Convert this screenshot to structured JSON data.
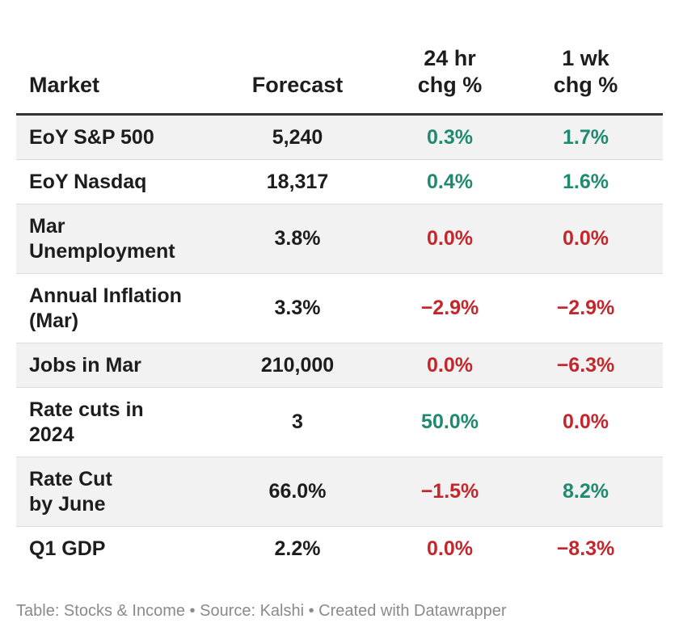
{
  "chart_data": {
    "type": "table",
    "columns": [
      "Market",
      "Forecast",
      "24 hr chg %",
      "1 wk chg %"
    ],
    "header_lines": {
      "market": "Market",
      "forecast": "Forecast",
      "chg24_line1": "24 hr",
      "chg24_line2": "chg %",
      "chg1wk_line1": "1 wk",
      "chg1wk_line2": "chg %"
    },
    "rows": [
      {
        "market_lines": [
          "EoY S&P 500"
        ],
        "forecast": "5,240",
        "chg24": "0.3%",
        "chg1wk": "1.7%"
      },
      {
        "market_lines": [
          "EoY Nasdaq"
        ],
        "forecast": "18,317",
        "chg24": "0.4%",
        "chg1wk": "1.6%"
      },
      {
        "market_lines": [
          "Mar",
          "Unemployment"
        ],
        "forecast": "3.8%",
        "chg24": "0.0%",
        "chg1wk": "0.0%"
      },
      {
        "market_lines": [
          "Annual Inflation",
          "(Mar)"
        ],
        "forecast": "3.3%",
        "chg24": "−2.9%",
        "chg1wk": "−2.9%"
      },
      {
        "market_lines": [
          "Jobs in Mar"
        ],
        "forecast": "210,000",
        "chg24": "0.0%",
        "chg1wk": "−6.3%"
      },
      {
        "market_lines": [
          "Rate cuts in",
          "2024"
        ],
        "forecast": "3",
        "chg24": "50.0%",
        "chg1wk": "0.0%"
      },
      {
        "market_lines": [
          "Rate Cut",
          "by June"
        ],
        "forecast": "66.0%",
        "chg24": "−1.5%",
        "chg1wk": "8.2%"
      },
      {
        "market_lines": [
          "Q1 GDP"
        ],
        "forecast": "2.2%",
        "chg24": "0.0%",
        "chg1wk": "−8.3%"
      }
    ],
    "colors": {
      "positive": "#1f8a6f",
      "negative": "#c4262b",
      "zero": "#c4262b",
      "row_shade": "#f2f2f2",
      "text": "#1d1d1d"
    }
  },
  "footer": "Table: Stocks & Income • Source: Kalshi • Created with Datawrapper"
}
